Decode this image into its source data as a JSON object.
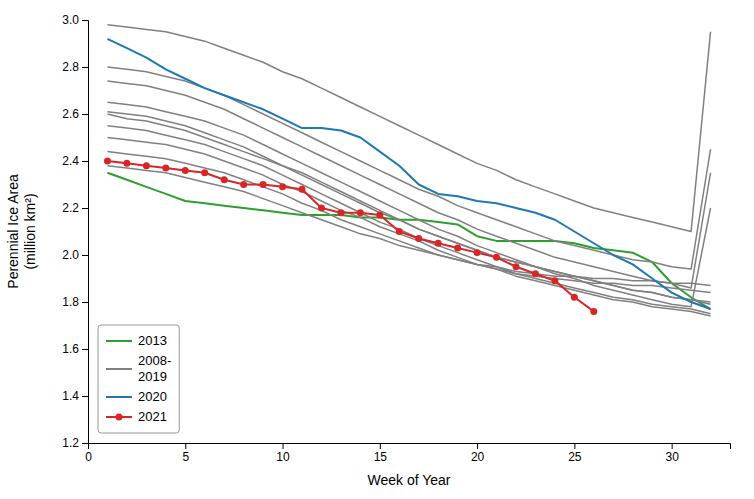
{
  "chart_data": {
    "type": "line",
    "xlabel": "Week of Year",
    "ylabel": "Perennial Ice Area\n(million km²)",
    "xlim": [
      0,
      33
    ],
    "ylim": [
      1.2,
      3.0
    ],
    "xticks": [
      0,
      5,
      10,
      15,
      20,
      25,
      30
    ],
    "yticks": [
      1.2,
      1.4,
      1.6,
      1.8,
      {
        "value": 2.0,
        "label": "2.0"
      },
      2.2,
      2.4,
      2.6,
      2.8,
      {
        "value": 3.0,
        "label": "3.0"
      }
    ],
    "grid": false,
    "legend": "lower left",
    "series": [
      {
        "name": "2013",
        "color": "#2ca02c",
        "x": [
          1,
          2,
          3,
          4,
          5,
          6,
          7,
          8,
          9,
          10,
          11,
          12,
          13,
          14,
          15,
          16,
          17,
          18,
          19,
          20,
          21,
          22,
          23,
          24,
          25,
          26,
          27,
          28,
          29,
          30,
          31,
          32
        ],
        "values": [
          2.35,
          2.32,
          2.29,
          2.26,
          2.23,
          2.22,
          2.21,
          2.2,
          2.19,
          2.18,
          2.17,
          2.17,
          2.17,
          2.16,
          2.16,
          2.15,
          2.15,
          2.14,
          2.13,
          2.08,
          2.06,
          2.06,
          2.06,
          2.06,
          2.05,
          2.03,
          2.02,
          2.01,
          1.97,
          1.88,
          1.82,
          1.77
        ]
      },
      {
        "name": "2008-\n2019",
        "color": "#808080",
        "x": [
          1,
          2,
          3,
          4,
          5,
          6,
          7,
          8,
          9,
          10,
          11,
          12,
          13,
          14,
          15,
          16,
          17,
          18,
          19,
          20,
          21,
          22,
          23,
          24,
          25,
          26,
          27,
          28,
          29,
          30,
          31,
          32
        ],
        "values": [
          2.98,
          2.97,
          2.96,
          2.95,
          2.93,
          2.91,
          2.88,
          2.85,
          2.82,
          2.78,
          2.75,
          2.71,
          2.67,
          2.63,
          2.59,
          2.55,
          2.51,
          2.47,
          2.43,
          2.39,
          2.36,
          2.32,
          2.29,
          2.26,
          2.23,
          2.2,
          2.18,
          2.16,
          2.14,
          2.12,
          2.1,
          2.95
        ]
      },
      {
        "color": "#808080",
        "x": [
          1,
          2,
          3,
          4,
          5,
          6,
          7,
          8,
          9,
          10,
          11,
          12,
          13,
          14,
          15,
          16,
          17,
          18,
          19,
          20,
          21,
          22,
          23,
          24,
          25,
          26,
          27,
          28,
          29,
          30,
          31,
          32
        ],
        "values": [
          2.8,
          2.79,
          2.78,
          2.76,
          2.74,
          2.71,
          2.68,
          2.64,
          2.6,
          2.56,
          2.52,
          2.48,
          2.44,
          2.4,
          2.36,
          2.32,
          2.28,
          2.25,
          2.21,
          2.18,
          2.15,
          2.12,
          2.09,
          2.06,
          2.04,
          2.02,
          2.0,
          1.98,
          1.97,
          1.95,
          1.94,
          2.45
        ]
      },
      {
        "color": "#808080",
        "x": [
          1,
          2,
          3,
          4,
          5,
          6,
          7,
          8,
          9,
          10,
          11,
          12,
          13,
          14,
          15,
          16,
          17,
          18,
          19,
          20,
          21,
          22,
          23,
          24,
          25,
          26,
          27,
          28,
          29,
          30,
          31,
          32
        ],
        "values": [
          2.74,
          2.73,
          2.72,
          2.7,
          2.68,
          2.65,
          2.62,
          2.58,
          2.54,
          2.5,
          2.46,
          2.42,
          2.38,
          2.34,
          2.3,
          2.26,
          2.22,
          2.18,
          2.15,
          2.11,
          2.08,
          2.05,
          2.02,
          1.99,
          1.97,
          1.95,
          1.93,
          1.91,
          1.89,
          1.88,
          1.86,
          2.35
        ]
      },
      {
        "color": "#808080",
        "x": [
          1,
          2,
          3,
          4,
          5,
          6,
          7,
          8,
          9,
          10,
          11,
          12,
          13,
          14,
          15,
          16,
          17,
          18,
          19,
          20,
          21,
          22,
          23,
          24,
          25,
          26,
          27,
          28,
          29,
          30,
          31,
          32
        ],
        "values": [
          2.65,
          2.64,
          2.63,
          2.61,
          2.59,
          2.57,
          2.54,
          2.51,
          2.47,
          2.43,
          2.39,
          2.35,
          2.31,
          2.27,
          2.23,
          2.19,
          2.15,
          2.11,
          2.08,
          2.04,
          2.01,
          1.98,
          1.95,
          1.92,
          1.9,
          1.87,
          1.85,
          1.83,
          1.81,
          1.79,
          1.78,
          2.2
        ]
      },
      {
        "color": "#808080",
        "x": [
          1,
          2,
          3,
          4,
          5,
          6,
          7,
          8,
          9,
          10,
          11,
          12,
          13,
          14,
          15,
          16,
          17,
          18,
          19,
          20,
          21,
          22,
          23,
          24,
          25,
          26,
          27,
          28,
          29,
          30,
          31,
          32
        ],
        "values": [
          2.61,
          2.6,
          2.59,
          2.57,
          2.55,
          2.52,
          2.49,
          2.46,
          2.42,
          2.38,
          2.34,
          2.3,
          2.26,
          2.22,
          2.18,
          2.15,
          2.11,
          2.08,
          2.05,
          2.02,
          1.99,
          1.97,
          1.95,
          1.93,
          1.91,
          1.89,
          1.87,
          1.85,
          1.84,
          1.82,
          1.81,
          1.8
        ]
      },
      {
        "color": "#808080",
        "x": [
          1,
          2,
          3,
          4,
          5,
          6,
          7,
          8,
          9,
          10,
          11,
          12,
          13,
          14,
          15,
          16,
          17,
          18,
          19,
          20,
          21,
          22,
          23,
          24,
          25,
          26,
          27,
          28,
          29,
          30,
          31,
          32
        ],
        "values": [
          2.55,
          2.54,
          2.53,
          2.51,
          2.49,
          2.47,
          2.44,
          2.41,
          2.38,
          2.34,
          2.3,
          2.26,
          2.22,
          2.18,
          2.14,
          2.11,
          2.07,
          2.04,
          2.01,
          1.98,
          1.95,
          1.92,
          1.9,
          1.88,
          1.86,
          1.84,
          1.82,
          1.81,
          1.79,
          1.78,
          1.77,
          1.75
        ]
      },
      {
        "color": "#808080",
        "x": [
          1,
          2,
          3,
          4,
          5,
          6,
          7,
          8,
          9,
          10,
          11,
          12,
          13,
          14,
          15,
          16,
          17,
          18,
          19,
          20,
          21,
          22,
          23,
          24,
          25,
          26,
          27,
          28,
          29,
          30,
          31,
          32
        ],
        "values": [
          2.5,
          2.49,
          2.48,
          2.47,
          2.45,
          2.43,
          2.4,
          2.37,
          2.34,
          2.3,
          2.27,
          2.23,
          2.19,
          2.16,
          2.12,
          2.09,
          2.06,
          2.02,
          1.99,
          1.96,
          1.94,
          1.91,
          1.89,
          1.87,
          1.85,
          1.83,
          1.81,
          1.8,
          1.78,
          1.77,
          1.76,
          1.74
        ]
      },
      {
        "color": "#808080",
        "x": [
          1,
          2,
          3,
          4,
          5,
          6,
          7,
          8,
          9,
          10,
          11,
          12,
          13,
          14,
          15,
          16,
          17,
          18,
          19,
          20,
          21,
          22,
          23,
          24,
          25,
          26,
          27,
          28,
          29,
          30,
          31,
          32
        ],
        "values": [
          2.6,
          2.58,
          2.57,
          2.55,
          2.53,
          2.5,
          2.47,
          2.44,
          2.41,
          2.38,
          2.35,
          2.31,
          2.27,
          2.23,
          2.19,
          2.15,
          2.11,
          2.08,
          2.05,
          2.02,
          1.99,
          1.97,
          1.95,
          1.93,
          1.91,
          1.89,
          1.87,
          1.85,
          1.84,
          1.82,
          1.81,
          1.79
        ]
      },
      {
        "color": "#808080",
        "x": [
          1,
          2,
          3,
          4,
          5,
          6,
          7,
          8,
          9,
          10,
          11,
          12,
          13,
          14,
          15,
          16,
          17,
          18,
          19,
          20,
          21,
          22,
          23,
          24,
          25,
          26,
          27,
          28,
          29,
          30,
          31,
          32
        ],
        "values": [
          2.44,
          2.43,
          2.42,
          2.41,
          2.39,
          2.37,
          2.35,
          2.32,
          2.29,
          2.26,
          2.22,
          2.19,
          2.15,
          2.12,
          2.09,
          2.06,
          2.03,
          2.0,
          1.98,
          1.96,
          1.94,
          1.92,
          1.91,
          1.9,
          1.89,
          1.88,
          1.88,
          1.87,
          1.87,
          1.86,
          1.85,
          1.84
        ]
      },
      {
        "color": "#808080",
        "x": [
          1,
          2,
          3,
          4,
          5,
          6,
          7,
          8,
          9,
          10,
          11,
          12,
          13,
          14,
          15,
          16,
          17,
          18,
          19,
          20,
          21,
          22,
          23,
          24,
          25,
          26,
          27,
          28,
          29,
          30,
          31,
          32
        ],
        "values": [
          2.38,
          2.37,
          2.36,
          2.35,
          2.33,
          2.31,
          2.29,
          2.27,
          2.24,
          2.21,
          2.18,
          2.15,
          2.12,
          2.09,
          2.07,
          2.04,
          2.02,
          2.0,
          1.98,
          1.96,
          1.95,
          1.93,
          1.92,
          1.91,
          1.91,
          1.9,
          1.9,
          1.89,
          1.89,
          1.88,
          1.88,
          1.87
        ]
      },
      {
        "name": "2020",
        "color": "#1f77b4",
        "x": [
          1,
          2,
          3,
          4,
          5,
          6,
          7,
          8,
          9,
          10,
          11,
          12,
          13,
          14,
          15,
          16,
          17,
          18,
          19,
          20,
          21,
          22,
          23,
          24,
          25,
          26,
          27,
          28,
          29,
          30,
          31,
          32
        ],
        "values": [
          2.92,
          2.88,
          2.84,
          2.79,
          2.75,
          2.71,
          2.68,
          2.65,
          2.62,
          2.58,
          2.54,
          2.54,
          2.53,
          2.5,
          2.44,
          2.38,
          2.3,
          2.26,
          2.25,
          2.23,
          2.22,
          2.2,
          2.18,
          2.15,
          2.1,
          2.05,
          2.0,
          1.96,
          1.9,
          1.84,
          1.8,
          1.77
        ]
      },
      {
        "name": "2021",
        "color": "#d62728",
        "marker": "circle",
        "x": [
          1,
          2,
          3,
          4,
          5,
          6,
          7,
          8,
          9,
          10,
          11,
          12,
          13,
          14,
          15,
          16,
          17,
          18,
          19,
          20,
          21,
          22,
          23,
          24,
          25,
          26
        ],
        "values": [
          2.4,
          2.39,
          2.38,
          2.37,
          2.36,
          2.35,
          2.32,
          2.3,
          2.3,
          2.29,
          2.28,
          2.2,
          2.18,
          2.18,
          2.17,
          2.1,
          2.07,
          2.05,
          2.03,
          2.01,
          1.99,
          1.95,
          1.92,
          1.89,
          1.82,
          1.76
        ]
      }
    ]
  }
}
